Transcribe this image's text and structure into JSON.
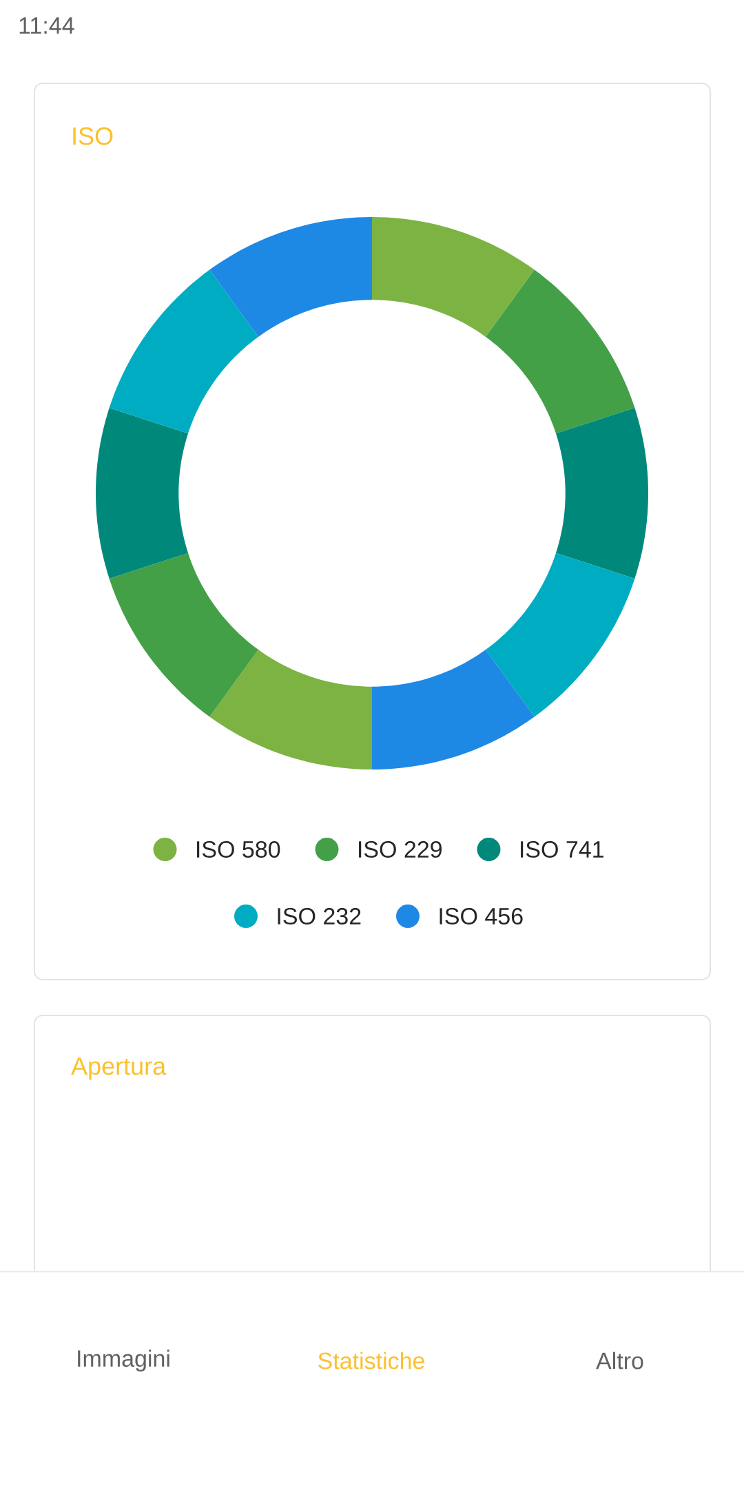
{
  "chart_data": [
    {
      "type": "donut",
      "title": "ISO",
      "categories": [
        "ISO 580",
        "ISO 229",
        "ISO 741",
        "ISO 232",
        "ISO 456",
        null,
        null,
        null,
        null,
        null
      ],
      "values": [
        10,
        10,
        10,
        10,
        10,
        10,
        10,
        10,
        10,
        10
      ],
      "colors": [
        "#7cb342",
        "#43a047",
        "#00897b",
        "#00acc1",
        "#1e88e5",
        "#7cb342",
        "#43a047",
        "#00897b",
        "#00acc1",
        "#1e88e5"
      ],
      "legend": "bottom"
    },
    {
      "type": "other",
      "title": "Apertura",
      "annotations": [
        "11:44",
        "Immagini",
        "Statistiche",
        "Altro"
      ]
    }
  ]
}
